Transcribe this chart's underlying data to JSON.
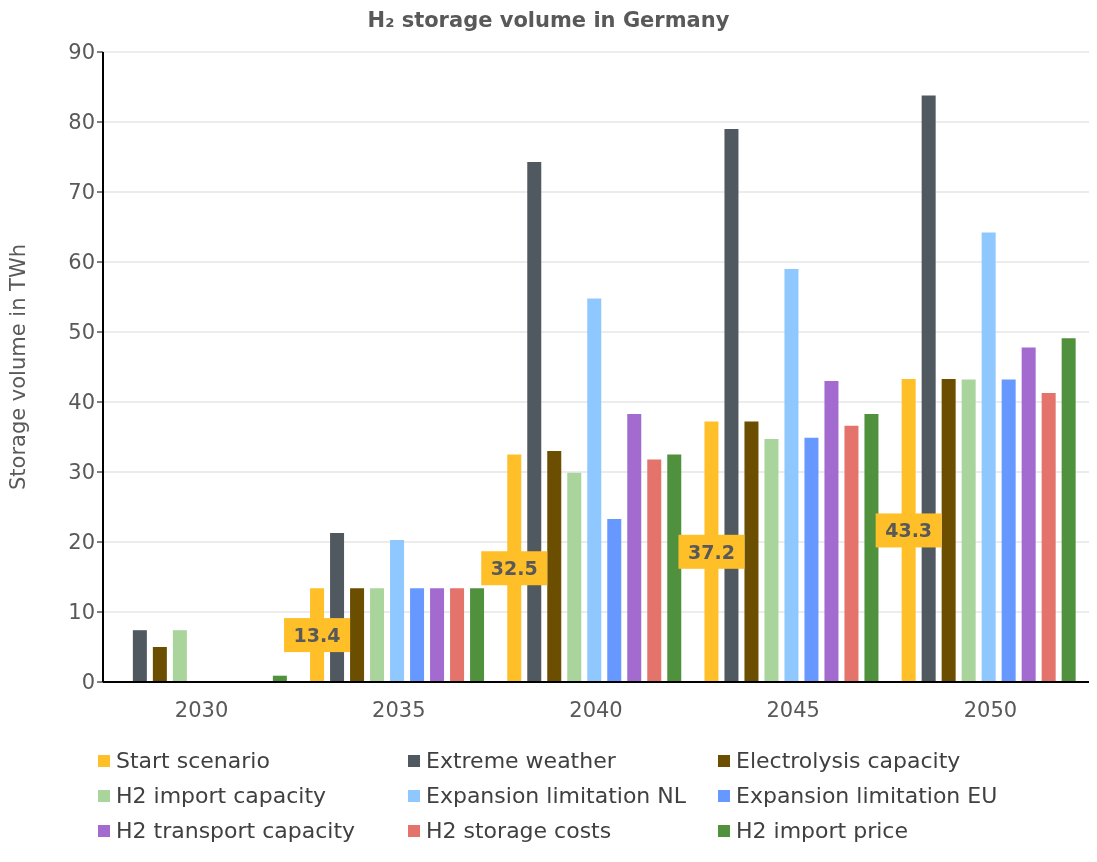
{
  "chart_data": {
    "type": "bar",
    "title": "H₂ storage volume in Germany",
    "ylabel": "Storage volume in TWh",
    "categories": [
      "2030",
      "2035",
      "2040",
      "2045",
      "2050"
    ],
    "series": [
      {
        "name": "Start scenario",
        "color": "#ffbf29",
        "values": [
          0,
          13.4,
          32.5,
          37.2,
          43.3
        ],
        "value_labels": [
          null,
          "13.4",
          "32.5",
          "37.2",
          "43.3"
        ]
      },
      {
        "name": "Extreme weather",
        "color": "#505860",
        "values": [
          7.4,
          21.3,
          74.3,
          79.0,
          83.8
        ]
      },
      {
        "name": "Electrolysis capacity",
        "color": "#6b4e00",
        "values": [
          5.0,
          13.4,
          33.0,
          37.2,
          43.3
        ]
      },
      {
        "name": "H2 import capacity",
        "color": "#a9d49c",
        "values": [
          7.4,
          13.4,
          29.9,
          34.7,
          43.2
        ]
      },
      {
        "name": "Expansion limitation NL",
        "color": "#8fc7ff",
        "values": [
          0,
          20.3,
          54.8,
          59.0,
          64.2
        ]
      },
      {
        "name": "Expansion limitation EU",
        "color": "#6698ff",
        "values": [
          0,
          13.4,
          23.3,
          34.9,
          43.2
        ]
      },
      {
        "name": "H2 transport capacity",
        "color": "#a36bd0",
        "values": [
          0,
          13.4,
          38.3,
          43.0,
          47.8
        ]
      },
      {
        "name": "H2 storage costs",
        "color": "#e3736b",
        "values": [
          0,
          13.4,
          31.8,
          36.6,
          41.3
        ]
      },
      {
        "name": "H2 import price",
        "color": "#4f913d",
        "values": [
          0.9,
          13.4,
          32.5,
          38.3,
          49.1
        ]
      }
    ],
    "ylim": [
      0,
      90
    ],
    "yticks": [
      0,
      10,
      20,
      30,
      40,
      50,
      60,
      70,
      80,
      90
    ],
    "grid": "y",
    "legend": "bottom"
  }
}
